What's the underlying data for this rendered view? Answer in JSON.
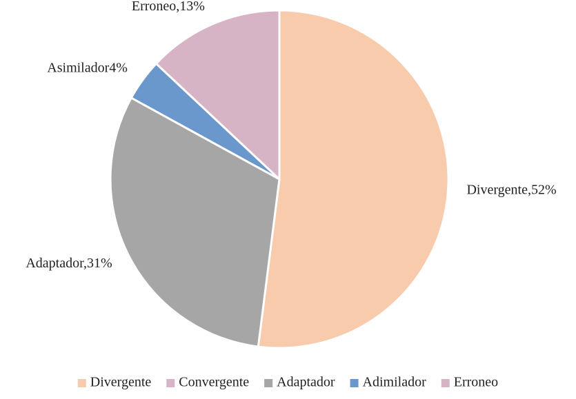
{
  "chart_data": {
    "type": "pie",
    "categories": [
      "Divergente",
      "Convergente",
      "Adaptador",
      "Adimilador",
      "Erroneo"
    ],
    "values": [
      52,
      0,
      31,
      4,
      13
    ],
    "value_labels": [
      "Divergente,52%",
      null,
      "Adaptador,31%",
      "Asimilador4%",
      "Erroneo,13%"
    ],
    "colors": [
      "#f8cbad",
      "#d9b3c8",
      "#a6a6a6",
      "#6b98cc",
      "#d6b4c6"
    ],
    "legend": "bottom"
  }
}
